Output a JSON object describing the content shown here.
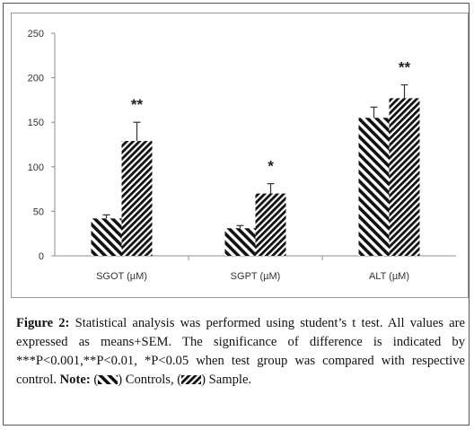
{
  "chart_data": {
    "type": "bar",
    "categories": [
      "SGOT (µM)",
      "SGPT (µM)",
      "ALT (µM)"
    ],
    "series": [
      {
        "values": [
          42,
          31,
          155
        ],
        "errors": [
          4,
          3,
          12
        ],
        "pattern": "controls-hatch"
      },
      {
        "values": [
          129,
          70,
          177
        ],
        "errors": [
          21,
          11,
          15
        ],
        "pattern": "sample-hatch"
      }
    ],
    "significance": [
      "**",
      "*",
      "**"
    ],
    "ylim": [
      0,
      250
    ],
    "yticks": [
      "0",
      "50",
      "100",
      "150",
      "200",
      "250"
    ],
    "xlabel": "",
    "ylabel": "",
    "grid": false,
    "colors": {
      "bar": "#111111",
      "axis": "#8c8c8c",
      "error": "#333333"
    }
  },
  "caption": {
    "figure_label": "Figure 2:",
    "text": " Statistical analysis was performed using student’s t test. All values are expressed as means+SEM. The significance of difference is indicated by ***P<0.001,**P<0.01, *P<0.05 when test group was compared with respective control. ",
    "note_label": "Note:",
    "legend_controls_open": " (",
    "legend_controls_close": ") Controls, (",
    "legend_sample_close": ") Sample."
  }
}
